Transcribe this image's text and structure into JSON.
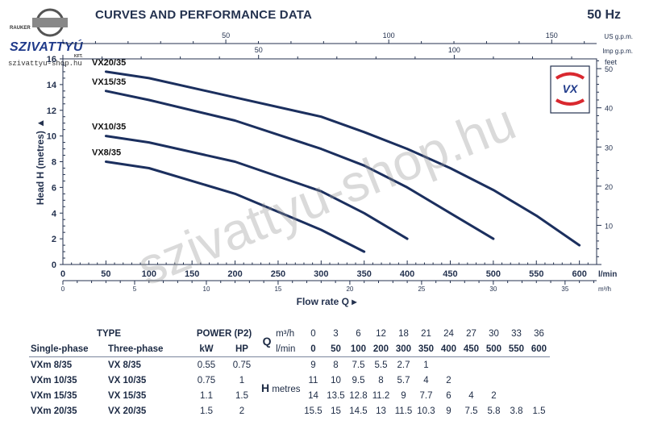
{
  "header": {
    "title": "CURVES AND PERFORMANCE DATA",
    "frequency": "50 Hz"
  },
  "logo": {
    "small_text": "RAUKER",
    "name": "SZIVATTYÚ",
    "kft": "KFT.",
    "url": "szivattyu-shop.hu"
  },
  "watermark": "szivattyu-shop.hu",
  "chart_data": {
    "type": "line",
    "ylabel": "Head H (metres)",
    "xlabel": "Flow rate Q",
    "y_unit_right": "feet",
    "ylim": [
      0,
      16
    ],
    "yticks": [
      0,
      2,
      4,
      6,
      8,
      10,
      12,
      14,
      16
    ],
    "xlim_lmin": [
      0,
      620
    ],
    "xticks_lmin": [
      50,
      100,
      150,
      200,
      250,
      300,
      350,
      400,
      450,
      500,
      550,
      600
    ],
    "x_unit_lmin": "l/min",
    "xticks_m3h": [
      0,
      5,
      10,
      15,
      20,
      25,
      30,
      35
    ],
    "x_unit_m3h": "m³/h",
    "xticks_usgpm": [
      50,
      100,
      150
    ],
    "x_unit_usgpm": "US g.p.m.",
    "xticks_impgpm": [
      50,
      100
    ],
    "x_unit_impgpm": "Imp g.p.m.",
    "yticks_feet": [
      10,
      20,
      30,
      40,
      50
    ],
    "grid": false,
    "series": [
      {
        "name": "VX20/35",
        "x": [
          50,
          100,
          200,
          300,
          350,
          400,
          450,
          500,
          550,
          600
        ],
        "y": [
          15,
          14.5,
          13,
          11.5,
          10.3,
          9,
          7.5,
          5.8,
          3.8,
          1.5
        ]
      },
      {
        "name": "VX15/35",
        "x": [
          50,
          100,
          200,
          300,
          350,
          400,
          450,
          500
        ],
        "y": [
          13.5,
          12.8,
          11.2,
          9,
          7.7,
          6,
          4,
          2
        ]
      },
      {
        "name": "VX10/35",
        "x": [
          50,
          100,
          200,
          300,
          350,
          400
        ],
        "y": [
          10,
          9.5,
          8,
          5.7,
          4,
          2
        ]
      },
      {
        "name": "VX8/35",
        "x": [
          50,
          100,
          200,
          300,
          350
        ],
        "y": [
          8,
          7.5,
          5.5,
          2.7,
          1
        ]
      }
    ]
  },
  "table": {
    "type_header": "TYPE",
    "power_header": "POWER (P2)",
    "single_phase": "Single-phase",
    "three_phase": "Three-phase",
    "kw": "kW",
    "hp": "HP",
    "q_label": "Q",
    "q_unit_m3h": "m³/h",
    "q_unit_lmin": "l/min",
    "h_label": "H",
    "h_unit": "metres",
    "q_m3h": [
      "0",
      "3",
      "6",
      "12",
      "18",
      "21",
      "24",
      "27",
      "30",
      "33",
      "36"
    ],
    "q_lmin": [
      "0",
      "50",
      "100",
      "200",
      "300",
      "350",
      "400",
      "450",
      "500",
      "550",
      "600"
    ],
    "rows": [
      {
        "single": "VXm 8/35",
        "three": "VX 8/35",
        "kw": "0.55",
        "hp": "0.75",
        "h": [
          "9",
          "8",
          "7.5",
          "5.5",
          "2.7",
          "1",
          "",
          "",
          "",
          "",
          ""
        ]
      },
      {
        "single": "VXm 10/35",
        "three": "VX 10/35",
        "kw": "0.75",
        "hp": "1",
        "h": [
          "11",
          "10",
          "9.5",
          "8",
          "5.7",
          "4",
          "2",
          "",
          "",
          "",
          ""
        ]
      },
      {
        "single": "VXm 15/35",
        "three": "VX 15/35",
        "kw": "1.1",
        "hp": "1.5",
        "h": [
          "14",
          "13.5",
          "12.8",
          "11.2",
          "9",
          "7.7",
          "6",
          "4",
          "2",
          "",
          ""
        ]
      },
      {
        "single": "VXm 20/35",
        "three": "VX 20/35",
        "kw": "1.5",
        "hp": "2",
        "h": [
          "15.5",
          "15",
          "14.5",
          "13",
          "11.5",
          "10.3",
          "9",
          "7.5",
          "5.8",
          "3.8",
          "1.5"
        ]
      }
    ]
  },
  "colors": {
    "curve": "#1b2f5e",
    "axis": "#24324f",
    "logo_red": "#d9282f",
    "logo_blue": "#1f3a8a"
  }
}
